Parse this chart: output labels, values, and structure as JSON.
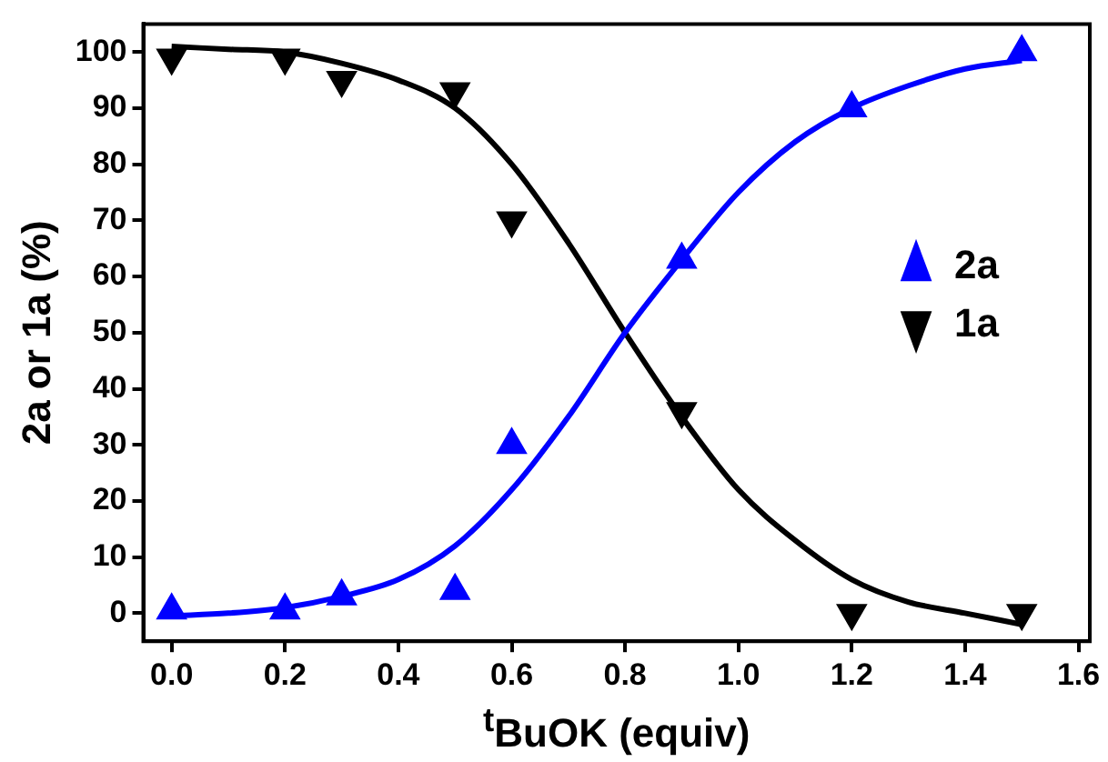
{
  "chart_data": {
    "type": "scatter",
    "xlabel": "$^{t}$BuOK (equiv)",
    "ylabel": "2a or 1a (%)",
    "xlim": [
      -0.05,
      1.62
    ],
    "xticks": [
      {
        "value": 0,
        "label": "0.0"
      },
      {
        "value": 0.2,
        "label": "0.2"
      },
      {
        "value": 0.4,
        "label": "0.4"
      },
      {
        "value": 0.6,
        "label": "0.6"
      },
      {
        "value": 0.8,
        "label": "0.8"
      },
      {
        "value": 1,
        "label": "1.0"
      },
      {
        "value": 1.2,
        "label": "1.2"
      },
      {
        "value": 1.4,
        "label": "1.4"
      },
      {
        "value": 1.6,
        "label": "1.6"
      }
    ],
    "ylim": [
      -5,
      105
    ],
    "yticks": [
      0,
      10,
      20,
      30,
      40,
      50,
      60,
      70,
      80,
      90,
      100
    ],
    "grid": false,
    "legend": "right",
    "series": [
      {
        "name": "2a",
        "color": "#0000ff",
        "marker": "triangle",
        "x": [
          0,
          0.2,
          0.3,
          0.5,
          0.6,
          0.9,
          1.2,
          1.5
        ],
        "values": [
          0.5,
          0.5,
          3,
          4,
          30,
          63,
          90,
          100
        ]
      },
      {
        "name": "1a",
        "color": "#000000",
        "marker": "triangle-down",
        "x": [
          0,
          0.2,
          0.3,
          0.5,
          0.6,
          0.9,
          1.2,
          1.5
        ],
        "values": [
          99,
          99,
          95,
          93,
          70,
          36,
          0,
          0
        ]
      },
      {
        "type": "line",
        "color": "#0000ff",
        "marker": "none",
        "x": [
          0,
          0.1,
          0.2,
          0.3,
          0.4,
          0.5,
          0.6,
          0.7,
          0.8,
          0.9,
          1.0,
          1.1,
          1.2,
          1.3,
          1.4,
          1.5
        ],
        "values": [
          -0.5,
          0,
          1,
          3,
          6,
          12,
          22,
          35,
          50,
          63,
          75,
          84,
          90,
          94,
          97,
          98.5
        ]
      },
      {
        "type": "line",
        "color": "#000000",
        "marker": "none",
        "x": [
          0,
          0.1,
          0.2,
          0.3,
          0.4,
          0.5,
          0.6,
          0.7,
          0.8,
          0.9,
          1.0,
          1.1,
          1.2,
          1.3,
          1.4,
          1.5
        ],
        "values": [
          101,
          100.5,
          100,
          98,
          95,
          90,
          80,
          66,
          50,
          35,
          22,
          13,
          6,
          2,
          0,
          -2
        ]
      }
    ]
  }
}
